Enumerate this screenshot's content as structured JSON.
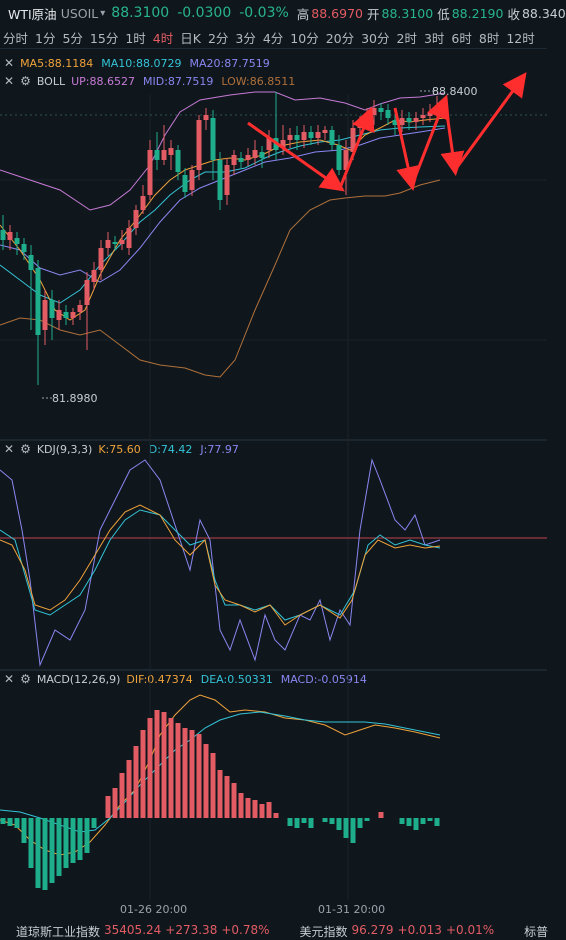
{
  "header": {
    "title": "WTI原油",
    "symbol": "USOIL",
    "price": "88.3100",
    "change": "-0.0300",
    "change_pct": "-0.03%",
    "high_label": "高",
    "high": "88.6970",
    "open_label": "开",
    "open": "88.3100",
    "low_label": "低",
    "low": "88.2190",
    "close_label": "收",
    "close": "88.340"
  },
  "timeframes": [
    "分时",
    "1分",
    "5分",
    "15分",
    "1时",
    "4时",
    "日K",
    "2分",
    "3分",
    "4分",
    "10分",
    "20分",
    "30分",
    "2时",
    "3时",
    "6时",
    "8时",
    "12时"
  ],
  "active_timeframe": "4时",
  "main_panel": {
    "ma": {
      "ma5": "MA5:88.1184",
      "ma10": "MA10:88.0729",
      "ma20": "MA20:87.7519"
    },
    "boll": {
      "name": "BOLL",
      "up": "UP:88.6527",
      "mid": "MID:87.7519",
      "low": "LOW:86.8511"
    },
    "high_marker": "88.8400",
    "low_marker": "81.8980"
  },
  "kdj": {
    "name": "KDJ(9,3,3)",
    "k": "K:75.60",
    "d": "D:74.42",
    "j": "J:77.97"
  },
  "macd": {
    "name": "MACD(12,26,9)",
    "dif": "DIF:0.47374",
    "dea": "DEA:0.50331",
    "macd": "MACD:-0.05914"
  },
  "time_axis": [
    "01-26 20:00",
    "01-31 20:00"
  ],
  "footer": {
    "dow_name": "道琼斯工业指数",
    "dow_value": "35405.24",
    "dow_change": "+273.38",
    "dow_pct": "+0.78%",
    "usd_name": "美元指数",
    "usd_value": "96.279",
    "usd_change": "+0.013",
    "usd_pct": "+0.01%",
    "sp_name": "标普"
  },
  "colors": {
    "bg": "#0f171d",
    "up": "#e35b63",
    "down": "#1fae8c",
    "ma5": "#f0a23a",
    "ma10": "#34c3d6",
    "ma20": "#8a86f0",
    "boll_up": "#c77ad6",
    "boll_low": "#b0703a",
    "arrow": "#ff2e2e"
  }
}
